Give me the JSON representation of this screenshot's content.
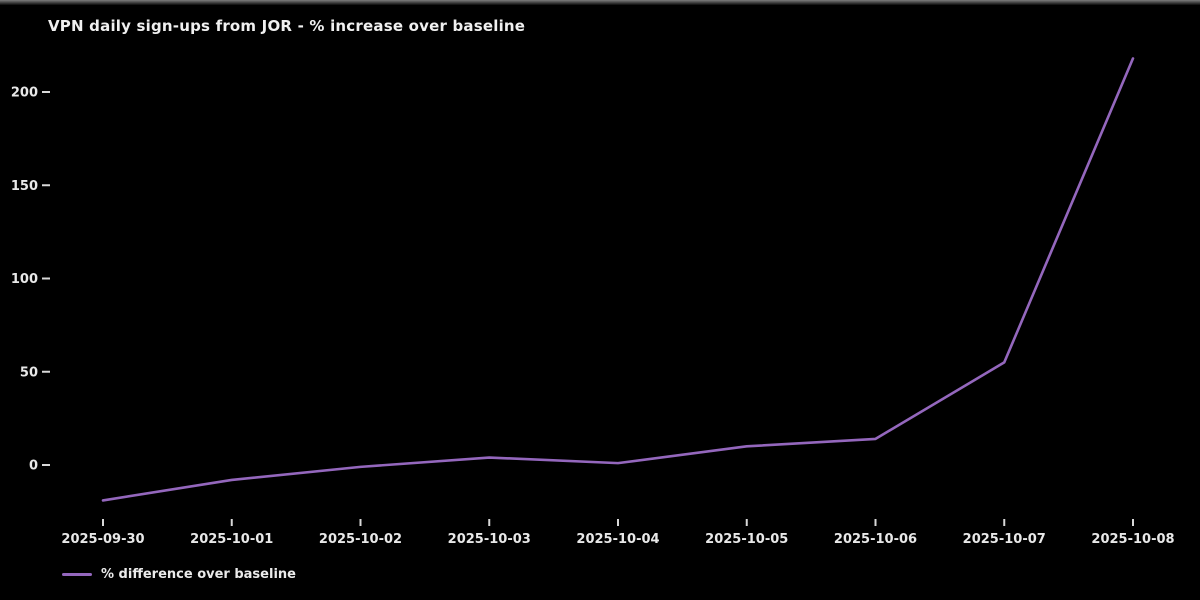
{
  "window": {
    "background_color": "#000000",
    "top_edge_color": "#7d7d7d"
  },
  "chart": {
    "title": "VPN daily sign-ups from JOR - % increase over baseline",
    "text_color": "#e8e8e8",
    "tick_color": "#d9d9d9",
    "legend": {
      "label": "% difference over baseline",
      "position": "lower-left-outside"
    }
  },
  "chart_data": {
    "type": "line",
    "title": "VPN daily sign-ups from JOR - % increase over baseline",
    "categories": [
      "2025-09-30",
      "2025-10-01",
      "2025-10-02",
      "2025-10-03",
      "2025-10-04",
      "2025-10-05",
      "2025-10-06",
      "2025-10-07",
      "2025-10-08"
    ],
    "series": [
      {
        "name": "% difference over baseline",
        "color": "#9467bd",
        "values": [
          -19,
          -8,
          -1,
          4,
          1,
          10,
          14,
          55,
          218
        ]
      }
    ],
    "xlabel": "",
    "ylabel": "",
    "yticks": [
      0,
      50,
      100,
      150,
      200
    ],
    "ylim": [
      -31,
      230
    ],
    "grid": false,
    "spines": false,
    "legend_position": "lower-left-outside",
    "line_width": 2.6,
    "background": "#000000"
  }
}
